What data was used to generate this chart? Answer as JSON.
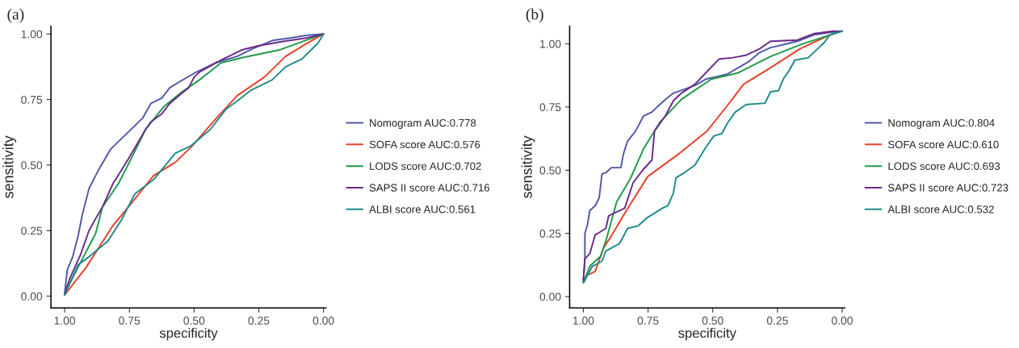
{
  "chart_data": [
    {
      "type": "line",
      "title": "(a)",
      "xlabel": "specificity",
      "ylabel": "sensitivity",
      "legend": "right",
      "grid": false,
      "xlim": [
        1.053,
        -0.01
      ],
      "ylim": [
        -0.045,
        1.03
      ],
      "xticks": [
        {
          "value": 1.0,
          "label": "1.00"
        },
        {
          "value": 0.75,
          "label": "0.75"
        },
        {
          "value": 0.5,
          "label": "0.50"
        },
        {
          "value": 0.25,
          "label": "0.25"
        },
        {
          "value": 0.0,
          "label": "0.00"
        }
      ],
      "yticks": [
        {
          "value": 0.0,
          "label": "0.00"
        },
        {
          "value": 0.25,
          "label": "0.25"
        },
        {
          "value": 0.5,
          "label": "0.50"
        },
        {
          "value": 0.75,
          "label": "0.75"
        },
        {
          "value": 1.0,
          "label": "1.00"
        }
      ],
      "series": [
        {
          "name": "Nomogram AUC:0.778",
          "color": "#5058a8",
          "x": [
            1.0,
            0.99,
            0.969,
            0.948,
            0.932,
            0.906,
            0.87,
            0.823,
            0.792,
            0.75,
            0.698,
            0.667,
            0.625,
            0.594,
            0.552,
            0.5,
            0.417,
            0.333,
            0.271,
            0.198,
            0.125,
            0.063,
            0.0
          ],
          "values": [
            0.01,
            0.1,
            0.15,
            0.23,
            0.31,
            0.41,
            0.48,
            0.56,
            0.59,
            0.63,
            0.68,
            0.735,
            0.755,
            0.795,
            0.82,
            0.85,
            0.89,
            0.915,
            0.945,
            0.975,
            0.985,
            0.995,
            1.0
          ]
        },
        {
          "name": "SOFA score AUC:0.576",
          "color": "#e8402a",
          "x": [
            1.0,
            0.917,
            0.813,
            0.75,
            0.656,
            0.573,
            0.51,
            0.417,
            0.333,
            0.229,
            0.146,
            0.063,
            0.0
          ],
          "values": [
            0.005,
            0.11,
            0.27,
            0.345,
            0.46,
            0.51,
            0.57,
            0.675,
            0.765,
            0.835,
            0.915,
            0.965,
            1.0
          ]
        },
        {
          "name": "LODS score AUC:0.702",
          "color": "#1f9a4a",
          "x": [
            1.0,
            0.938,
            0.88,
            0.854,
            0.792,
            0.74,
            0.688,
            0.615,
            0.552,
            0.479,
            0.396,
            0.313,
            0.167,
            0.0
          ],
          "values": [
            0.01,
            0.13,
            0.24,
            0.34,
            0.43,
            0.53,
            0.635,
            0.725,
            0.775,
            0.825,
            0.89,
            0.91,
            0.94,
            1.0
          ]
        },
        {
          "name": "SAPS II score AUC:0.716",
          "color": "#6a2a8a",
          "x": [
            1.0,
            0.979,
            0.938,
            0.906,
            0.875,
            0.854,
            0.813,
            0.781,
            0.75,
            0.688,
            0.667,
            0.625,
            0.594,
            0.552,
            0.521,
            0.5,
            0.479,
            0.396,
            0.313,
            0.25,
            0.167,
            0.063,
            0.0
          ],
          "values": [
            0.01,
            0.07,
            0.16,
            0.25,
            0.305,
            0.34,
            0.43,
            0.48,
            0.53,
            0.635,
            0.665,
            0.695,
            0.735,
            0.77,
            0.795,
            0.835,
            0.855,
            0.9,
            0.94,
            0.955,
            0.97,
            0.985,
            1.0
          ]
        },
        {
          "name": "ALBI score AUC:0.561",
          "color": "#1f8a8a",
          "x": [
            1.0,
            0.948,
            0.906,
            0.833,
            0.781,
            0.729,
            0.656,
            0.573,
            0.51,
            0.438,
            0.375,
            0.333,
            0.281,
            0.198,
            0.146,
            0.083,
            0.021,
            0.0
          ],
          "values": [
            0.005,
            0.12,
            0.15,
            0.21,
            0.29,
            0.39,
            0.445,
            0.545,
            0.575,
            0.635,
            0.715,
            0.745,
            0.785,
            0.825,
            0.875,
            0.905,
            0.965,
            1.0
          ]
        }
      ]
    },
    {
      "type": "line",
      "title": "(b)",
      "xlabel": "specificity",
      "ylabel": "sensitivity",
      "legend": "right",
      "grid": false,
      "xlim": [
        1.053,
        -0.01
      ],
      "ylim": [
        -0.045,
        1.07
      ],
      "xticks": [
        {
          "value": 1.0,
          "label": "1.00"
        },
        {
          "value": 0.75,
          "label": "0.75"
        },
        {
          "value": 0.5,
          "label": "0.50"
        },
        {
          "value": 0.25,
          "label": "0.25"
        },
        {
          "value": 0.0,
          "label": "0.00"
        }
      ],
      "yticks": [
        {
          "value": 0.0,
          "label": "0.00"
        },
        {
          "value": 0.25,
          "label": "0.25"
        },
        {
          "value": 0.5,
          "label": "0.50"
        },
        {
          "value": 0.75,
          "label": "0.75"
        },
        {
          "value": 1.0,
          "label": "1.00"
        }
      ],
      "series": [
        {
          "name": "Nomogram AUC:0.804",
          "color": "#5058a8",
          "x": [
            1.0,
            0.994,
            0.994,
            0.985,
            0.975,
            0.954,
            0.939,
            0.928,
            0.913,
            0.892,
            0.855,
            0.845,
            0.829,
            0.798,
            0.767,
            0.735,
            0.715,
            0.683,
            0.652,
            0.61,
            0.569,
            0.527,
            0.485,
            0.444,
            0.402,
            0.36,
            0.319,
            0.277,
            0.235,
            0.173,
            0.11,
            0.048,
            0.0
          ],
          "values": [
            0.06,
            0.15,
            0.25,
            0.28,
            0.34,
            0.36,
            0.39,
            0.485,
            0.49,
            0.51,
            0.51,
            0.565,
            0.615,
            0.655,
            0.715,
            0.73,
            0.75,
            0.78,
            0.805,
            0.82,
            0.835,
            0.86,
            0.87,
            0.88,
            0.905,
            0.93,
            0.965,
            0.985,
            0.995,
            1.01,
            1.035,
            1.045,
            1.05
          ]
        },
        {
          "name": "SOFA score AUC:0.610",
          "color": "#e8402a",
          "x": [
            0.996,
            0.985,
            0.954,
            0.923,
            0.892,
            0.84,
            0.751,
            0.631,
            0.522,
            0.444,
            0.381,
            0.277,
            0.163,
            0.048,
            0.0
          ],
          "values": [
            0.06,
            0.085,
            0.1,
            0.19,
            0.24,
            0.33,
            0.475,
            0.565,
            0.655,
            0.755,
            0.84,
            0.905,
            0.98,
            1.035,
            1.05
          ]
        },
        {
          "name": "LODS score AUC:0.693",
          "color": "#1f9a4a",
          "x": [
            1.0,
            0.975,
            0.933,
            0.913,
            0.871,
            0.819,
            0.767,
            0.704,
            0.621,
            0.506,
            0.402,
            0.277,
            0.152,
            0.0
          ],
          "values": [
            0.055,
            0.12,
            0.16,
            0.22,
            0.375,
            0.465,
            0.585,
            0.69,
            0.78,
            0.86,
            0.885,
            0.95,
            1.0,
            1.05
          ]
        },
        {
          "name": "SAPS II score AUC:0.723",
          "color": "#6a2a8a",
          "x": [
            1.0,
            0.994,
            0.975,
            0.954,
            0.944,
            0.913,
            0.902,
            0.871,
            0.84,
            0.808,
            0.767,
            0.735,
            0.725,
            0.683,
            0.652,
            0.621,
            0.569,
            0.527,
            0.475,
            0.423,
            0.371,
            0.319,
            0.277,
            0.173,
            0.11,
            0.038,
            0.0
          ],
          "values": [
            0.065,
            0.15,
            0.17,
            0.245,
            0.25,
            0.27,
            0.32,
            0.335,
            0.35,
            0.45,
            0.505,
            0.54,
            0.655,
            0.715,
            0.775,
            0.805,
            0.84,
            0.885,
            0.94,
            0.945,
            0.955,
            0.98,
            1.01,
            1.015,
            1.04,
            1.05,
            1.05
          ]
        },
        {
          "name": "ALBI score AUC:0.532",
          "color": "#1f8a8a",
          "x": [
            1.0,
            0.965,
            0.928,
            0.913,
            0.86,
            0.829,
            0.788,
            0.756,
            0.694,
            0.673,
            0.652,
            0.642,
            0.61,
            0.569,
            0.527,
            0.496,
            0.465,
            0.444,
            0.413,
            0.371,
            0.298,
            0.277,
            0.246,
            0.225,
            0.204,
            0.183,
            0.131,
            0.069,
            0.048,
            0.0
          ],
          "values": [
            0.055,
            0.12,
            0.14,
            0.18,
            0.21,
            0.27,
            0.28,
            0.31,
            0.35,
            0.36,
            0.41,
            0.47,
            0.49,
            0.52,
            0.59,
            0.635,
            0.645,
            0.685,
            0.73,
            0.76,
            0.765,
            0.81,
            0.815,
            0.865,
            0.895,
            0.935,
            0.945,
            1.005,
            1.035,
            1.05
          ]
        }
      ]
    }
  ]
}
